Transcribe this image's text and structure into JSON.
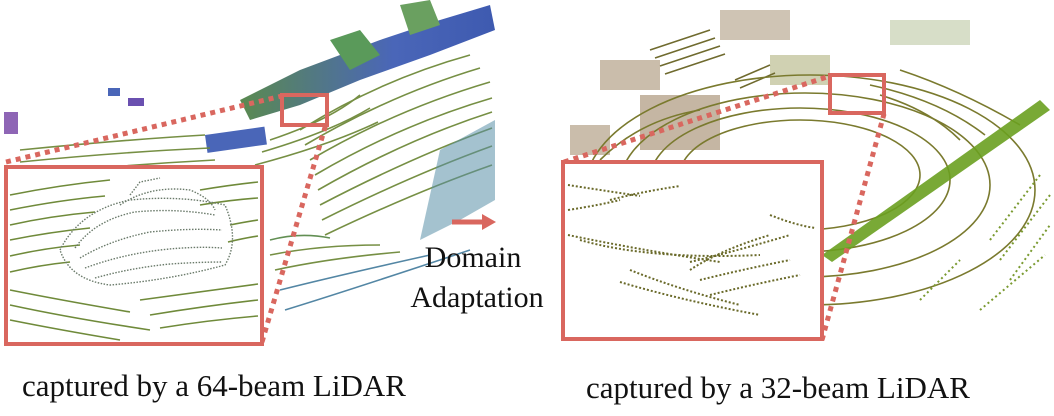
{
  "panels": {
    "left": {
      "caption": "captured by a 64-beam LiDAR"
    },
    "right": {
      "caption": "captured by a 32-beam LiDAR"
    }
  },
  "center": {
    "line1": "Domain",
    "line2": "Adaptation",
    "arrow_color": "#d9675f"
  },
  "colors": {
    "highlight_box": "#d9675f",
    "point_green": "#6f8a3a",
    "point_olive": "#8a8c3e",
    "point_blue": "#4a66b8",
    "point_purple": "#7a4aa8",
    "point_brown": "#7a5a2e"
  }
}
